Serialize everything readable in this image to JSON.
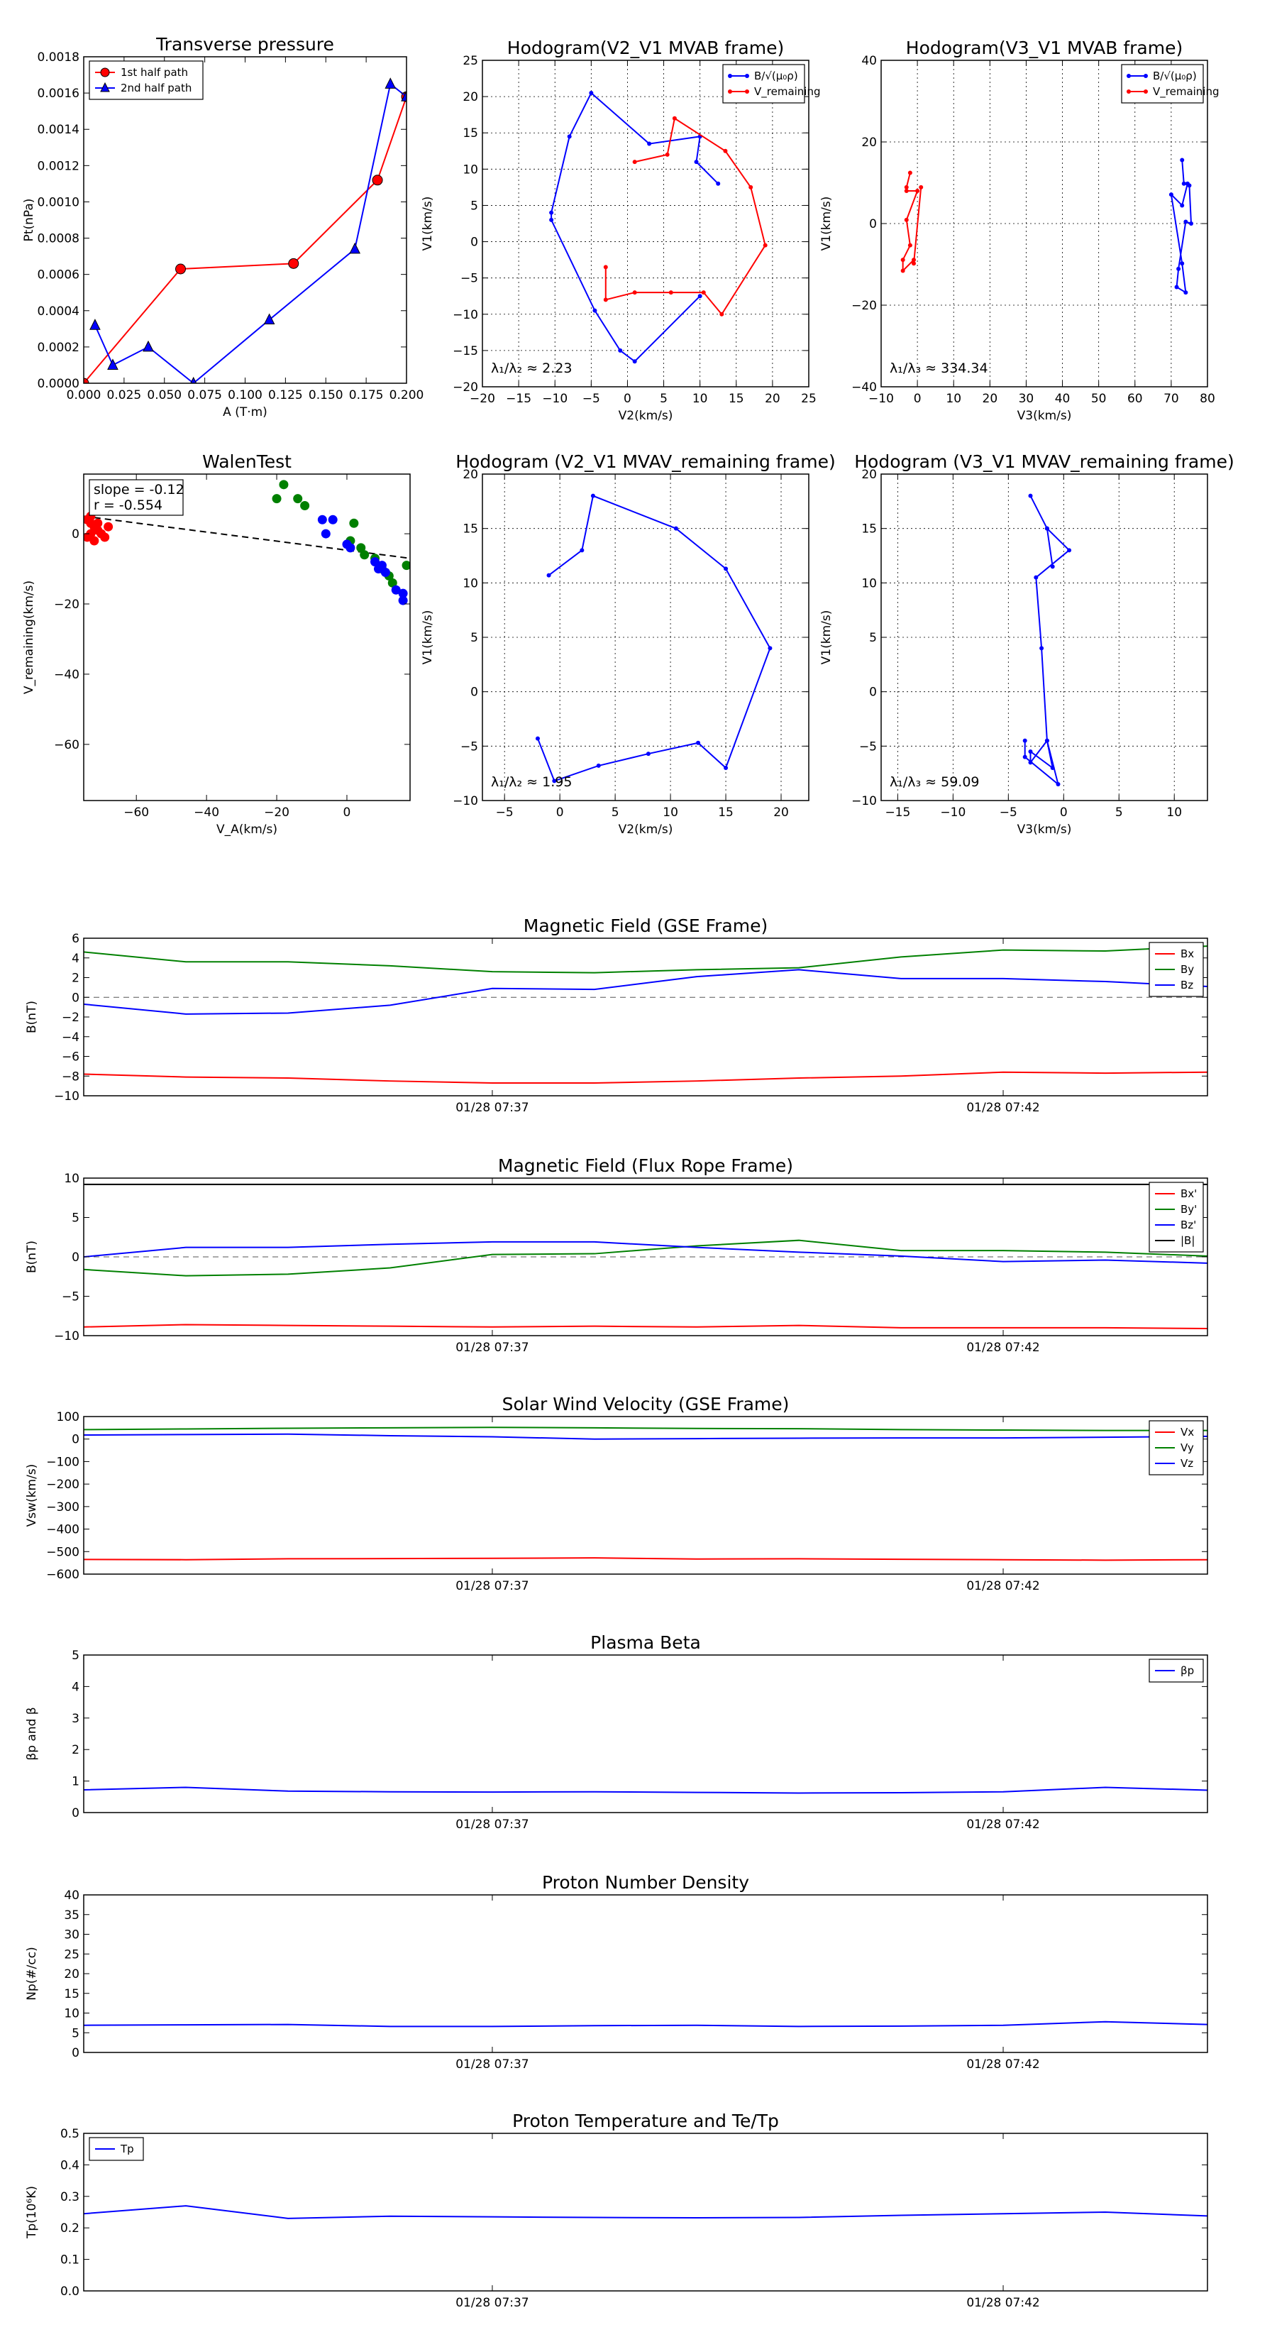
{
  "chart_data": [
    {
      "id": "pt",
      "type": "line",
      "title": "Transverse pressure",
      "xlabel": "A (T·m)",
      "ylabel": "Pt(nPa)",
      "xlim": [
        0,
        0.2
      ],
      "ylim": [
        0,
        0.0018
      ],
      "xticks": [
        "0.000",
        "0.025",
        "0.050",
        "0.075",
        "0.100",
        "0.125",
        "0.150",
        "0.175",
        "0.200"
      ],
      "yticks": [
        "0.0000",
        "0.0002",
        "0.0004",
        "0.0006",
        "0.0008",
        "0.0010",
        "0.0012",
        "0.0014",
        "0.0016",
        "0.0018"
      ],
      "grid": false,
      "legend": "top-left",
      "series": [
        {
          "name": "1st half path",
          "color": "#ff0000",
          "marker": "circle",
          "x": [
            0.0,
            0.06,
            0.13,
            0.182,
            0.2
          ],
          "y": [
            0.0,
            0.00063,
            0.00066,
            0.00112,
            0.00158
          ]
        },
        {
          "name": "2nd half path",
          "color": "#0000ff",
          "marker": "triangle",
          "x": [
            0.2,
            0.19,
            0.168,
            0.115,
            0.068,
            0.04,
            0.018,
            0.007
          ],
          "y": [
            0.00158,
            0.00165,
            0.00074,
            0.00035,
            0.0,
            0.0002,
            0.0001,
            0.00032
          ]
        }
      ]
    },
    {
      "id": "h1",
      "type": "line",
      "title": "Hodogram(V2_V1 MVAB frame)",
      "xlabel": "V2(km/s)",
      "ylabel": "V1(km/s)",
      "xlim": [
        -20,
        25
      ],
      "ylim": [
        -20,
        25
      ],
      "xticks": [
        "−20",
        "−15",
        "−10",
        "−5",
        "0",
        "5",
        "10",
        "15",
        "20",
        "25"
      ],
      "yticks": [
        "−20",
        "−15",
        "−10",
        "−5",
        "0",
        "5",
        "10",
        "15",
        "20",
        "25"
      ],
      "grid": true,
      "legend": "top-right",
      "annotation": "λ₁/λ₂ ≈ 2.23",
      "series": [
        {
          "name": "B/√(μ₀ρ)",
          "color": "#0000ff",
          "x": [
            12.5,
            9.5,
            10,
            3,
            -5,
            -8,
            -10.5,
            -10.5,
            -4.5,
            -1,
            1,
            10
          ],
          "y": [
            8,
            11,
            14.5,
            13.5,
            20.5,
            14.5,
            4,
            3,
            -9.5,
            -15,
            -16.5,
            -7.5
          ]
        },
        {
          "name": "V_remaining",
          "color": "#ff0000",
          "x": [
            -3,
            -3,
            1,
            6,
            10.5,
            13,
            19,
            17,
            13.5,
            6.5,
            5.5,
            1
          ],
          "y": [
            -3.5,
            -8,
            -7,
            -7,
            -7,
            -10,
            -0.5,
            7.5,
            12.5,
            17,
            12,
            11
          ]
        }
      ]
    },
    {
      "id": "h2",
      "type": "line",
      "title": "Hodogram(V3_V1 MVAB frame)",
      "xlabel": "V3(km/s)",
      "ylabel": "V1(km/s)",
      "xlim": [
        -10,
        80
      ],
      "ylim": [
        -42,
        48
      ],
      "xticks": [
        "−10",
        "0",
        "10",
        "20",
        "30",
        "40",
        "50",
        "60",
        "70",
        "80"
      ],
      "yticks": [
        "−40",
        "−20",
        "0",
        "20",
        "40"
      ],
      "grid": true,
      "legend": "top-right",
      "annotation": "λ₁/λ₃ ≈ 334.34",
      "series": [
        {
          "name": "B/√(μ₀ρ)",
          "color": "#0000ff",
          "x": [
            73,
            73.5,
            75,
            75.5,
            74,
            72,
            71.5,
            74,
            73,
            70,
            73,
            74.5
          ],
          "y": [
            20.5,
            14,
            13.5,
            3,
            3.5,
            -9.5,
            -14.5,
            -16,
            -8,
            11,
            8,
            14
          ]
        },
        {
          "name": "V_remaining",
          "color": "#ff0000",
          "x": [
            -2,
            -3,
            -3,
            0,
            -3,
            -2,
            -4,
            -4,
            -1,
            -1,
            1
          ],
          "y": [
            17,
            13,
            12,
            12,
            4,
            -3,
            -7,
            -10,
            -7,
            -8,
            13
          ]
        }
      ]
    },
    {
      "id": "walen",
      "type": "scatter",
      "title": "WalenTest",
      "xlabel": "V_A(km/s)",
      "ylabel": "V_remaining(km/s)",
      "xlim": [
        -75,
        18
      ],
      "ylim": [
        -76,
        17
      ],
      "xticks": [
        "−60",
        "−40",
        "−20",
        "0"
      ],
      "xtick_values": [
        -60,
        -40,
        -20,
        0
      ],
      "yticks": [
        "−60",
        "−40",
        "−20",
        "0"
      ],
      "ytick_values": [
        -60,
        -40,
        -20,
        0
      ],
      "grid": false,
      "annotation_lines": [
        "slope = -0.12",
        "r = -0.554"
      ],
      "fit_line": {
        "x": [
          -75,
          18
        ],
        "y": [
          5,
          -7
        ]
      },
      "series": [
        {
          "name": "",
          "color": "#ff0000",
          "x": [
            -74,
            -73,
            -72,
            -71,
            -73,
            -74,
            -72,
            -68,
            -70,
            -69,
            -73,
            -71
          ],
          "y": [
            4,
            3,
            2,
            1,
            0,
            -1,
            -2,
            2,
            0,
            -1,
            5,
            3
          ]
        },
        {
          "name": "",
          "color": "#008000",
          "x": [
            -18,
            -20,
            -14,
            -12,
            1,
            2,
            4,
            5,
            8,
            10,
            12,
            13,
            17
          ],
          "y": [
            14,
            10,
            10,
            8,
            -2,
            3,
            -4,
            -6,
            -7,
            -10,
            -12,
            -14,
            -9
          ]
        },
        {
          "name": "",
          "color": "#0000ff",
          "x": [
            -7,
            -4,
            -6,
            0,
            1,
            8,
            10,
            11,
            14,
            16,
            16,
            9
          ],
          "y": [
            4,
            4,
            0,
            -3,
            -4,
            -8,
            -9,
            -11,
            -16,
            -17,
            -19,
            -10
          ]
        }
      ]
    },
    {
      "id": "h3",
      "type": "line",
      "title": "Hodogram (V2_V1 MVAV_remaining frame)",
      "xlabel": "V2(km/s)",
      "ylabel": "V1(km/s)",
      "xlim": [
        -7,
        22.5
      ],
      "ylim": [
        -10,
        20
      ],
      "xticks": [
        "−5",
        "0",
        "5",
        "10",
        "15",
        "20"
      ],
      "xtick_values": [
        -5,
        0,
        5,
        10,
        15,
        20
      ],
      "yticks": [
        "−10",
        "−5",
        "0",
        "5",
        "10",
        "15",
        "20"
      ],
      "grid": true,
      "annotation": "λ₁/λ₂ ≈ 1.95",
      "series": [
        {
          "name": "",
          "color": "#0000ff",
          "x": [
            -1,
            2,
            3,
            10.5,
            15,
            19,
            15,
            12.5,
            8,
            3.5,
            -0.5,
            -2
          ],
          "y": [
            10.7,
            13,
            18,
            15,
            11.3,
            4,
            -7,
            -4.7,
            -5.7,
            -6.8,
            -8.2,
            -4.3
          ]
        }
      ]
    },
    {
      "id": "h4",
      "type": "line",
      "title": "Hodogram (V3_V1 MVAV_remaining frame)",
      "xlabel": "V3(km/s)",
      "ylabel": "V1(km/s)",
      "xlim": [
        -16.5,
        13
      ],
      "ylim": [
        -10,
        20
      ],
      "xticks": [
        "−15",
        "−10",
        "−5",
        "0",
        "5",
        "10"
      ],
      "xtick_values": [
        -15,
        -10,
        -5,
        0,
        5,
        10
      ],
      "yticks": [
        "−10",
        "−5",
        "0",
        "5",
        "10",
        "15",
        "20"
      ],
      "grid": true,
      "annotation": "λ₁/λ₃ ≈ 59.09",
      "series": [
        {
          "name": "",
          "color": "#0000ff",
          "x": [
            -3,
            -1.5,
            -1,
            -1.5,
            0.5,
            -2.5,
            -2,
            -1.5,
            -3,
            -3,
            -1,
            -1.5,
            -0.5,
            -3.5,
            -3.5
          ],
          "y": [
            18,
            15,
            11.5,
            15,
            13,
            10.5,
            4,
            -4.5,
            -6.5,
            -5.5,
            -7,
            -4.5,
            -8.5,
            -6,
            -4.5
          ]
        }
      ]
    },
    {
      "id": "ts1",
      "type": "line",
      "title": "Magnetic Field (GSE Frame)",
      "ylabel": "B(nT)",
      "xlim": [
        0,
        1
      ],
      "ylim": [
        -10,
        6
      ],
      "yticks": [
        "−10",
        "−8",
        "−6",
        "−4",
        "−2",
        "0",
        "2",
        "4",
        "6"
      ],
      "ytick_values": [
        -10,
        -8,
        -6,
        -4,
        -2,
        0,
        2,
        4,
        6
      ],
      "xticks": [
        "01/28 07:37",
        "01/28 07:42"
      ],
      "xtick_values": [
        0.3636,
        0.8182
      ],
      "zero_line": true,
      "legend": "top-right",
      "x": [
        0,
        0.0909,
        0.1818,
        0.2727,
        0.3636,
        0.4545,
        0.5455,
        0.6364,
        0.7273,
        0.8182,
        0.9091,
        1.0
      ],
      "series": [
        {
          "name": "Bx",
          "color": "#ff0000",
          "values": [
            -7.8,
            -8.1,
            -8.2,
            -8.5,
            -8.7,
            -8.7,
            -8.5,
            -8.2,
            -8.0,
            -7.6,
            -7.7,
            -7.6
          ]
        },
        {
          "name": "By",
          "color": "#008000",
          "values": [
            4.6,
            3.6,
            3.6,
            3.2,
            2.6,
            2.5,
            2.8,
            3.0,
            4.1,
            4.8,
            4.7,
            5.2
          ]
        },
        {
          "name": "Bz",
          "color": "#0000ff",
          "values": [
            -0.7,
            -1.7,
            -1.6,
            -0.8,
            0.9,
            0.8,
            2.1,
            2.8,
            1.9,
            1.9,
            1.6,
            1.1
          ]
        }
      ]
    },
    {
      "id": "ts2",
      "type": "line",
      "title": "Magnetic Field (Flux Rope Frame)",
      "ylabel": "B(nT)",
      "xlim": [
        0,
        1
      ],
      "ylim": [
        -10,
        10
      ],
      "yticks": [
        "−10",
        "−5",
        "0",
        "5",
        "10"
      ],
      "ytick_values": [
        -10,
        -5,
        0,
        5,
        10
      ],
      "xticks": [
        "01/28 07:37",
        "01/28 07:42"
      ],
      "xtick_values": [
        0.3636,
        0.8182
      ],
      "zero_line": true,
      "legend": "top-right",
      "x": [
        0,
        0.0909,
        0.1818,
        0.2727,
        0.3636,
        0.4545,
        0.5455,
        0.6364,
        0.7273,
        0.8182,
        0.9091,
        1.0
      ],
      "series": [
        {
          "name": "Bx'",
          "color": "#ff0000",
          "values": [
            -8.9,
            -8.6,
            -8.7,
            -8.8,
            -8.9,
            -8.8,
            -8.9,
            -8.7,
            -9.0,
            -9.0,
            -9.0,
            -9.1
          ]
        },
        {
          "name": "By'",
          "color": "#008000",
          "values": [
            -1.6,
            -2.4,
            -2.2,
            -1.4,
            0.3,
            0.4,
            1.4,
            2.1,
            0.8,
            0.8,
            0.6,
            0.1
          ]
        },
        {
          "name": "Bz'",
          "color": "#0000ff",
          "values": [
            0.0,
            1.2,
            1.2,
            1.6,
            1.9,
            1.9,
            1.2,
            0.6,
            0.1,
            -0.6,
            -0.4,
            -0.8
          ]
        },
        {
          "name": "|B|",
          "color": "#000000",
          "values": [
            9.2,
            9.2,
            9.2,
            9.2,
            9.2,
            9.2,
            9.2,
            9.2,
            9.2,
            9.2,
            9.2,
            9.2
          ]
        }
      ]
    },
    {
      "id": "ts3",
      "type": "line",
      "title": "Solar Wind Velocity (GSE Frame)",
      "ylabel": "Vsw(km/s)",
      "xlim": [
        0,
        1
      ],
      "ylim": [
        -600,
        100
      ],
      "yticks": [
        "−600",
        "−500",
        "−400",
        "−300",
        "−200",
        "−100",
        "0",
        "100"
      ],
      "ytick_values": [
        -600,
        -500,
        -400,
        -300,
        -200,
        -100,
        0,
        100
      ],
      "xticks": [
        "01/28 07:37",
        "01/28 07:42"
      ],
      "xtick_values": [
        0.3636,
        0.8182
      ],
      "legend": "top-right",
      "x": [
        0,
        0.0909,
        0.1818,
        0.2727,
        0.3636,
        0.4545,
        0.5455,
        0.6364,
        0.7273,
        0.8182,
        0.9091,
        1.0
      ],
      "series": [
        {
          "name": "Vx",
          "color": "#ff0000",
          "values": [
            -535,
            -536,
            -532,
            -531,
            -530,
            -528,
            -533,
            -532,
            -534,
            -536,
            -538,
            -536
          ]
        },
        {
          "name": "Vy",
          "color": "#008000",
          "values": [
            42,
            45,
            48,
            50,
            52,
            50,
            47,
            46,
            42,
            40,
            38,
            38
          ]
        },
        {
          "name": "Vz",
          "color": "#0000ff",
          "values": [
            18,
            20,
            22,
            15,
            10,
            0,
            2,
            4,
            5,
            5,
            8,
            12
          ]
        }
      ]
    },
    {
      "id": "ts4",
      "type": "line",
      "title": "Plasma Beta",
      "ylabel": "βp and β",
      "xlim": [
        0,
        1
      ],
      "ylim": [
        0,
        5
      ],
      "yticks": [
        "0",
        "1",
        "2",
        "3",
        "4",
        "5"
      ],
      "ytick_values": [
        0,
        1,
        2,
        3,
        4,
        5
      ],
      "xticks": [
        "01/28 07:37",
        "01/28 07:42"
      ],
      "xtick_values": [
        0.3636,
        0.8182
      ],
      "legend": "top-right",
      "x": [
        0,
        0.0909,
        0.1818,
        0.2727,
        0.3636,
        0.4545,
        0.5455,
        0.6364,
        0.7273,
        0.8182,
        0.9091,
        1.0
      ],
      "series": [
        {
          "name": "βp",
          "color": "#0000ff",
          "values": [
            0.72,
            0.8,
            0.68,
            0.66,
            0.65,
            0.66,
            0.64,
            0.62,
            0.63,
            0.66,
            0.8,
            0.71
          ]
        }
      ]
    },
    {
      "id": "ts5",
      "type": "line",
      "title": "Proton Number Density",
      "ylabel": "Np(#/cc)",
      "xlim": [
        0,
        1
      ],
      "ylim": [
        0,
        40
      ],
      "yticks": [
        "0",
        "5",
        "10",
        "15",
        "20",
        "25",
        "30",
        "35",
        "40"
      ],
      "ytick_values": [
        0,
        5,
        10,
        15,
        20,
        25,
        30,
        35,
        40
      ],
      "xticks": [
        "01/28 07:37",
        "01/28 07:42"
      ],
      "xtick_values": [
        0.3636,
        0.8182
      ],
      "x": [
        0,
        0.0909,
        0.1818,
        0.2727,
        0.3636,
        0.4545,
        0.5455,
        0.6364,
        0.7273,
        0.8182,
        0.9091,
        1.0
      ],
      "series": [
        {
          "name": "",
          "color": "#0000ff",
          "values": [
            6.9,
            7.0,
            7.1,
            6.6,
            6.6,
            6.8,
            6.9,
            6.6,
            6.7,
            6.9,
            7.8,
            7.1
          ]
        }
      ]
    },
    {
      "id": "ts6",
      "type": "line",
      "title": "Proton Temperature and Te/Tp",
      "ylabel": "Tp(10⁶K)",
      "xlim": [
        0,
        1
      ],
      "ylim": [
        0,
        0.5
      ],
      "yticks": [
        "0.0",
        "0.1",
        "0.2",
        "0.3",
        "0.4",
        "0.5"
      ],
      "ytick_values": [
        0,
        0.1,
        0.2,
        0.3,
        0.4,
        0.5
      ],
      "xticks": [
        "01/28 07:37",
        "01/28 07:42"
      ],
      "xtick_values": [
        0.3636,
        0.8182
      ],
      "legend": "top-left",
      "x": [
        0,
        0.0909,
        0.1818,
        0.2727,
        0.3636,
        0.4545,
        0.5455,
        0.6364,
        0.7273,
        0.8182,
        0.9091,
        1.0
      ],
      "series": [
        {
          "name": "Tp",
          "color": "#0000ff",
          "values": [
            0.245,
            0.27,
            0.23,
            0.237,
            0.235,
            0.233,
            0.232,
            0.233,
            0.24,
            0.245,
            0.25,
            0.238
          ]
        }
      ]
    }
  ]
}
